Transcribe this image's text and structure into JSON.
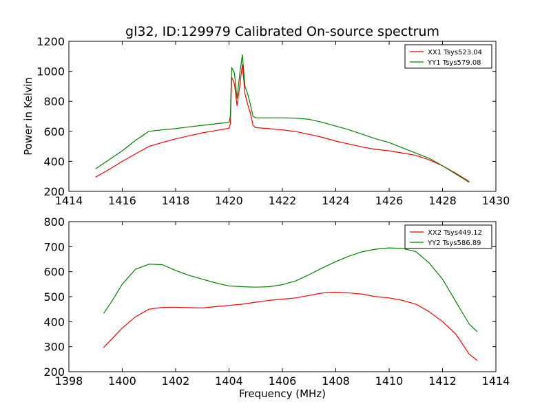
{
  "chart_data": [
    {
      "type": "line",
      "title": "gl32, ID:129979 Calibrated On-source spectrum",
      "xlabel": "",
      "ylabel": "Power in Kelvin",
      "xlim": [
        1414,
        1430
      ],
      "ylim": [
        200,
        1200
      ],
      "xticks": [
        "1414",
        "1416",
        "1418",
        "1420",
        "1422",
        "1424",
        "1426",
        "1428",
        "1430"
      ],
      "yticks": [
        "200",
        "400",
        "600",
        "800",
        "1000",
        "1200"
      ],
      "legend_position": "top-right",
      "grid": false,
      "series": [
        {
          "name": "XX1 Tsys523.04",
          "color": "#ff0000",
          "points": [
            [
              1415.0,
              295
            ],
            [
              1415.5,
              345
            ],
            [
              1416.0,
              400
            ],
            [
              1416.5,
              450
            ],
            [
              1417.0,
              500
            ],
            [
              1417.5,
              525
            ],
            [
              1418.0,
              550
            ],
            [
              1418.5,
              570
            ],
            [
              1419.0,
              590
            ],
            [
              1419.5,
              605
            ],
            [
              1420.0,
              620
            ],
            [
              1420.05,
              650
            ],
            [
              1420.1,
              960
            ],
            [
              1420.2,
              920
            ],
            [
              1420.3,
              770
            ],
            [
              1420.4,
              900
            ],
            [
              1420.5,
              1045
            ],
            [
              1420.6,
              850
            ],
            [
              1420.7,
              780
            ],
            [
              1420.8,
              720
            ],
            [
              1420.9,
              640
            ],
            [
              1421.0,
              625
            ],
            [
              1421.5,
              618
            ],
            [
              1422.0,
              610
            ],
            [
              1422.5,
              598
            ],
            [
              1423.0,
              580
            ],
            [
              1423.5,
              560
            ],
            [
              1424.0,
              535
            ],
            [
              1424.5,
              515
            ],
            [
              1425.0,
              495
            ],
            [
              1425.5,
              480
            ],
            [
              1426.0,
              470
            ],
            [
              1426.5,
              455
            ],
            [
              1427.0,
              440
            ],
            [
              1427.5,
              410
            ],
            [
              1428.0,
              370
            ],
            [
              1428.5,
              320
            ],
            [
              1429.0,
              265
            ]
          ]
        },
        {
          "name": "YY1 Tsys579.08",
          "color": "#008000",
          "points": [
            [
              1415.0,
              350
            ],
            [
              1415.5,
              410
            ],
            [
              1416.0,
              470
            ],
            [
              1416.5,
              540
            ],
            [
              1417.0,
              600
            ],
            [
              1417.5,
              610
            ],
            [
              1418.0,
              618
            ],
            [
              1418.5,
              630
            ],
            [
              1419.0,
              640
            ],
            [
              1419.5,
              650
            ],
            [
              1420.0,
              660
            ],
            [
              1420.05,
              700
            ],
            [
              1420.1,
              1025
            ],
            [
              1420.2,
              990
            ],
            [
              1420.3,
              820
            ],
            [
              1420.4,
              980
            ],
            [
              1420.5,
              1110
            ],
            [
              1420.6,
              900
            ],
            [
              1420.7,
              850
            ],
            [
              1420.8,
              780
            ],
            [
              1420.9,
              700
            ],
            [
              1421.0,
              690
            ],
            [
              1421.5,
              690
            ],
            [
              1422.0,
              690
            ],
            [
              1422.5,
              688
            ],
            [
              1423.0,
              680
            ],
            [
              1423.5,
              660
            ],
            [
              1424.0,
              635
            ],
            [
              1424.5,
              610
            ],
            [
              1425.0,
              580
            ],
            [
              1425.5,
              550
            ],
            [
              1426.0,
              525
            ],
            [
              1426.5,
              490
            ],
            [
              1427.0,
              455
            ],
            [
              1427.5,
              420
            ],
            [
              1428.0,
              370
            ],
            [
              1428.5,
              315
            ],
            [
              1429.0,
              260
            ]
          ]
        }
      ]
    },
    {
      "type": "line",
      "title": "",
      "xlabel": "Frequency (MHz)",
      "ylabel": "",
      "xlim": [
        1398,
        1414
      ],
      "ylim": [
        200,
        800
      ],
      "xticks": [
        "1398",
        "1400",
        "1402",
        "1404",
        "1406",
        "1408",
        "1410",
        "1412",
        "1414"
      ],
      "yticks": [
        "200",
        "300",
        "400",
        "500",
        "600",
        "700",
        "800"
      ],
      "legend_position": "top-right",
      "grid": false,
      "series": [
        {
          "name": "XX2 Tsys449.12",
          "color": "#ff0000",
          "points": [
            [
              1399.3,
              297
            ],
            [
              1399.6,
              330
            ],
            [
              1400.0,
              375
            ],
            [
              1400.5,
              420
            ],
            [
              1401.0,
              450
            ],
            [
              1401.5,
              457
            ],
            [
              1402.0,
              458
            ],
            [
              1402.5,
              456
            ],
            [
              1403.0,
              455
            ],
            [
              1403.5,
              460
            ],
            [
              1404.0,
              465
            ],
            [
              1404.5,
              470
            ],
            [
              1405.0,
              478
            ],
            [
              1405.5,
              485
            ],
            [
              1406.0,
              490
            ],
            [
              1406.5,
              495
            ],
            [
              1407.0,
              505
            ],
            [
              1407.5,
              515
            ],
            [
              1408.0,
              518
            ],
            [
              1408.5,
              515
            ],
            [
              1409.0,
              510
            ],
            [
              1409.5,
              500
            ],
            [
              1410.0,
              495
            ],
            [
              1410.5,
              485
            ],
            [
              1411.0,
              470
            ],
            [
              1411.5,
              440
            ],
            [
              1412.0,
              400
            ],
            [
              1412.5,
              350
            ],
            [
              1413.0,
              270
            ],
            [
              1413.3,
              245
            ]
          ]
        },
        {
          "name": "YY2 Tsys586.89",
          "color": "#008000",
          "points": [
            [
              1399.3,
              433
            ],
            [
              1399.6,
              480
            ],
            [
              1400.0,
              550
            ],
            [
              1400.5,
              610
            ],
            [
              1401.0,
              630
            ],
            [
              1401.5,
              628
            ],
            [
              1402.0,
              605
            ],
            [
              1402.5,
              585
            ],
            [
              1403.0,
              570
            ],
            [
              1403.5,
              555
            ],
            [
              1404.0,
              543
            ],
            [
              1404.5,
              540
            ],
            [
              1405.0,
              538
            ],
            [
              1405.5,
              540
            ],
            [
              1406.0,
              548
            ],
            [
              1406.5,
              563
            ],
            [
              1407.0,
              588
            ],
            [
              1407.5,
              615
            ],
            [
              1408.0,
              640
            ],
            [
              1408.5,
              662
            ],
            [
              1409.0,
              680
            ],
            [
              1409.5,
              690
            ],
            [
              1410.0,
              695
            ],
            [
              1410.5,
              693
            ],
            [
              1411.0,
              680
            ],
            [
              1411.5,
              635
            ],
            [
              1412.0,
              570
            ],
            [
              1412.5,
              480
            ],
            [
              1413.0,
              390
            ],
            [
              1413.3,
              360
            ]
          ]
        }
      ]
    }
  ]
}
